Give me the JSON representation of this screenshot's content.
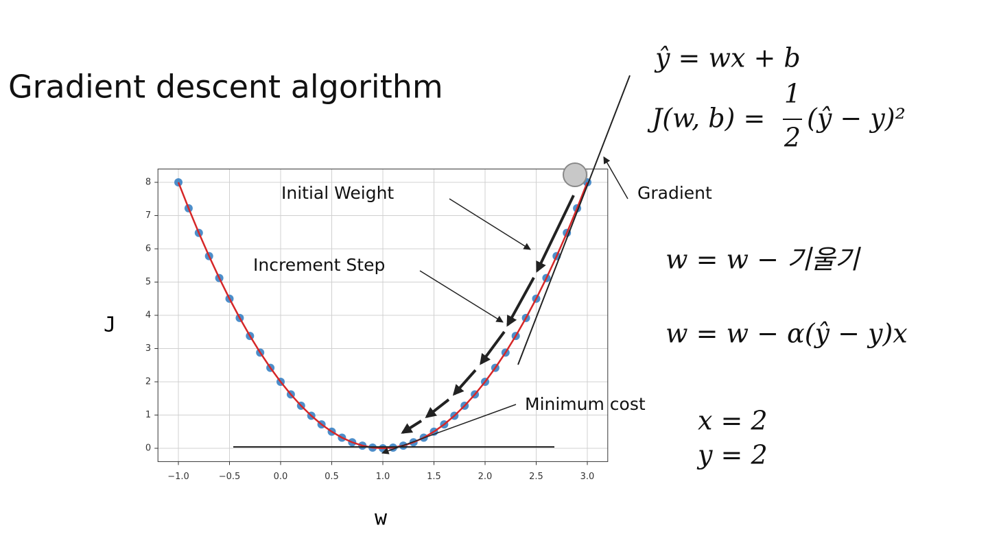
{
  "title": "Gradient descent algorithm",
  "equations": {
    "hypothesis": "ŷ = wx + b",
    "cost_left": "J(w, b) =",
    "cost_numerator": "1",
    "cost_denominator": "2",
    "cost_right": "(ŷ − y)²",
    "update_rule": "w = w  − 기울기",
    "update_rule_expanded": "w = w  − α(ŷ − y)x",
    "x_value": "x = 2",
    "y_value": "y = 2"
  },
  "chart_data": {
    "type": "scatter",
    "x_label": "w",
    "y_label": "J",
    "x": [
      -1.0,
      -0.9,
      -0.8,
      -0.7,
      -0.6,
      -0.5,
      -0.4,
      -0.3,
      -0.2,
      -0.1,
      0.0,
      0.1,
      0.2,
      0.3,
      0.4,
      0.5,
      0.6,
      0.7,
      0.8,
      0.9,
      1.0,
      1.1,
      1.2,
      1.3,
      1.4,
      1.5,
      1.6,
      1.7,
      1.8,
      1.9,
      2.0,
      2.1,
      2.2,
      2.3,
      2.4,
      2.5,
      2.6,
      2.7,
      2.8,
      2.9,
      3.0
    ],
    "series": [
      {
        "type": "scatter",
        "color": "#3a82c4",
        "values": [
          8,
          7.22,
          6.48,
          5.78,
          5.12,
          4.5,
          3.92,
          3.38,
          2.88,
          2.42,
          2,
          1.62,
          1.28,
          0.98,
          0.72,
          0.5,
          0.32,
          0.18,
          0.08,
          0.02,
          0,
          0.02,
          0.08,
          0.18,
          0.32,
          0.5,
          0.72,
          0.98,
          1.28,
          1.62,
          2,
          2.42,
          2.88,
          3.38,
          3.92,
          4.5,
          5.12,
          5.78,
          6.48,
          7.22,
          8
        ]
      },
      {
        "type": "line",
        "color": "#d62728",
        "values": [
          8,
          7.22,
          6.48,
          5.78,
          5.12,
          4.5,
          3.92,
          3.38,
          2.88,
          2.42,
          2,
          1.62,
          1.28,
          0.98,
          0.72,
          0.5,
          0.32,
          0.18,
          0.08,
          0.02,
          0,
          0.02,
          0.08,
          0.18,
          0.32,
          0.5,
          0.72,
          0.98,
          1.28,
          1.62,
          2,
          2.42,
          2.88,
          3.38,
          3.92,
          4.5,
          5.12,
          5.78,
          6.48,
          7.22,
          8
        ]
      }
    ],
    "xlim": [
      -1.2,
      3.2
    ],
    "ylim": [
      -0.4,
      8.4
    ],
    "xticks": [
      {
        "value": -1.0,
        "label": "−1.0"
      },
      {
        "value": -0.5,
        "label": "−0.5"
      },
      {
        "value": 0.0,
        "label": "0.0"
      },
      {
        "value": 0.5,
        "label": "0.5"
      },
      {
        "value": 1.0,
        "label": "1.0"
      },
      {
        "value": 1.5,
        "label": "1.5"
      },
      {
        "value": 2.0,
        "label": "2.0"
      },
      {
        "value": 2.5,
        "label": "2.5"
      },
      {
        "value": 3.0,
        "label": "3.0"
      }
    ],
    "yticks": [
      0,
      1,
      2,
      3,
      4,
      5,
      6,
      7,
      8
    ],
    "grid": true,
    "annotations": {
      "initial_weight": "Initial Weight",
      "increment_step": "Increment Step",
      "minimum_cost": "Minimum cost",
      "gradient": "Gradient"
    }
  }
}
